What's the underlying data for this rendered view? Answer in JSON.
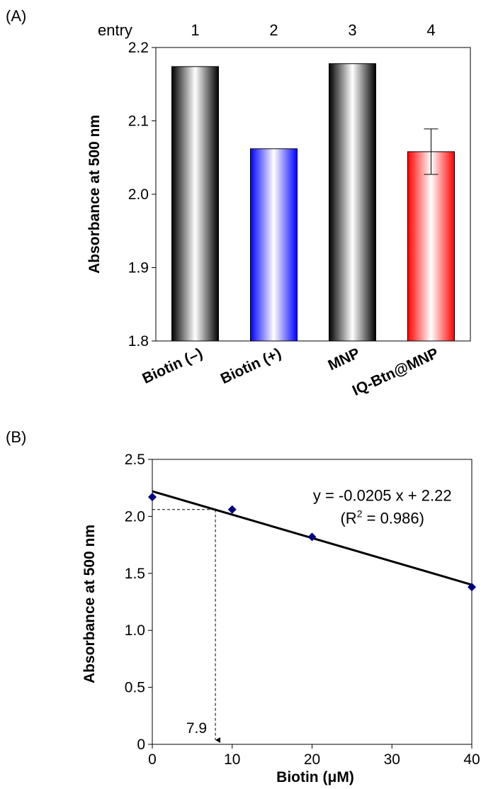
{
  "chart_data": [
    {
      "panel_label": "(A)",
      "type": "bar",
      "entry_label": "entry",
      "entries": [
        "1",
        "2",
        "3",
        "4"
      ],
      "categories": [
        "Biotin (–)",
        "Biotin (+)",
        "MNP",
        "IQ-Btn@MNP"
      ],
      "values": [
        2.174,
        2.062,
        2.178,
        2.058
      ],
      "error": [
        null,
        null,
        null,
        0.031
      ],
      "colors": [
        "#000000",
        "#0000ff",
        "#000000",
        "#ff0000"
      ],
      "ylabel": "Absorbance at 500 nm",
      "xlabel": "",
      "ylim": [
        1.8,
        2.2
      ],
      "yticks": [
        "1.8",
        "1.9",
        "2.0",
        "2.1",
        "2.2"
      ],
      "grid": false
    },
    {
      "panel_label": "(B)",
      "type": "scatter",
      "x": [
        0,
        10,
        20,
        40
      ],
      "y": [
        2.17,
        2.06,
        1.82,
        1.38
      ],
      "marker_color": "#000080",
      "fit": {
        "slope": -0.0205,
        "intercept": 2.22
      },
      "equation_text": "y = -0.0205 x + 2.22",
      "r2_prefix": "(R",
      "r2_sup": "2",
      "r2_suffix": " = 0.986)",
      "annotation": {
        "x": 7.9,
        "y": 2.06,
        "label": "7.9"
      },
      "xlabel_prefix": "Biotin (",
      "xlabel_mu": "μ",
      "xlabel_suffix": "M)",
      "ylabel": "Absorbance at 500 nm",
      "xlim": [
        0,
        40
      ],
      "ylim": [
        0,
        2.5
      ],
      "xticks": [
        "0",
        "10",
        "20",
        "30",
        "40"
      ],
      "yticks": [
        "0",
        "0.5",
        "1.0",
        "1.5",
        "2.0",
        "2.5"
      ],
      "grid": false
    }
  ]
}
